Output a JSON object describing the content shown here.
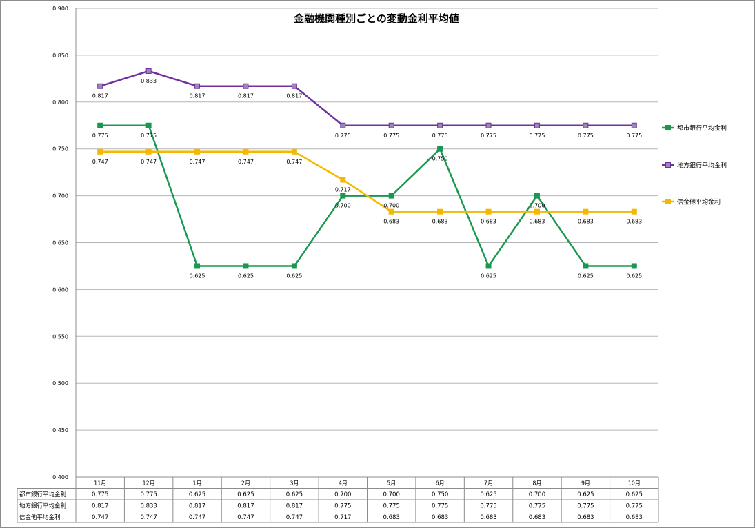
{
  "chart_data": {
    "type": "line",
    "title": "金融機関種別ごとの変動金利平均値",
    "xlabel": "",
    "ylabel": "",
    "categories": [
      "11月",
      "12月",
      "1月",
      "2月",
      "3月",
      "4月",
      "5月",
      "6月",
      "7月",
      "8月",
      "9月",
      "10月"
    ],
    "ylim": [
      0.4,
      0.9
    ],
    "yticks": [
      "0.400",
      "0.450",
      "0.500",
      "0.550",
      "0.600",
      "0.650",
      "0.700",
      "0.750",
      "0.800",
      "0.850",
      "0.900"
    ],
    "grid": true,
    "legend_position": "right",
    "data_table": true,
    "series": [
      {
        "name": "都市銀行平均金利",
        "color": "#1a9850",
        "values": [
          0.775,
          0.775,
          0.625,
          0.625,
          0.625,
          0.7,
          0.7,
          0.75,
          0.625,
          0.7,
          0.625,
          0.625
        ],
        "labels": [
          "0.775",
          "0.775",
          "0.625",
          "0.625",
          "0.625",
          "0.700",
          "0.700",
          "0.750",
          "0.625",
          "0.700",
          "0.625",
          "0.625"
        ]
      },
      {
        "name": "地方銀行平均金利",
        "color": "#7030a0",
        "marker_fill": "#9b87b5",
        "values": [
          0.817,
          0.833,
          0.817,
          0.817,
          0.817,
          0.775,
          0.775,
          0.775,
          0.775,
          0.775,
          0.775,
          0.775
        ],
        "labels": [
          "0.817",
          "0.833",
          "0.817",
          "0.817",
          "0.817",
          "0.775",
          "0.775",
          "0.775",
          "0.775",
          "0.775",
          "0.775",
          "0.775"
        ]
      },
      {
        "name": "信金他平均金利",
        "color": "#f5b800",
        "values": [
          0.747,
          0.747,
          0.747,
          0.747,
          0.747,
          0.717,
          0.683,
          0.683,
          0.683,
          0.683,
          0.683,
          0.683
        ],
        "labels": [
          "0.747",
          "0.747",
          "0.747",
          "0.747",
          "0.747",
          "0.717",
          "0.683",
          "0.683",
          "0.683",
          "0.683",
          "0.683",
          "0.683"
        ]
      }
    ]
  }
}
